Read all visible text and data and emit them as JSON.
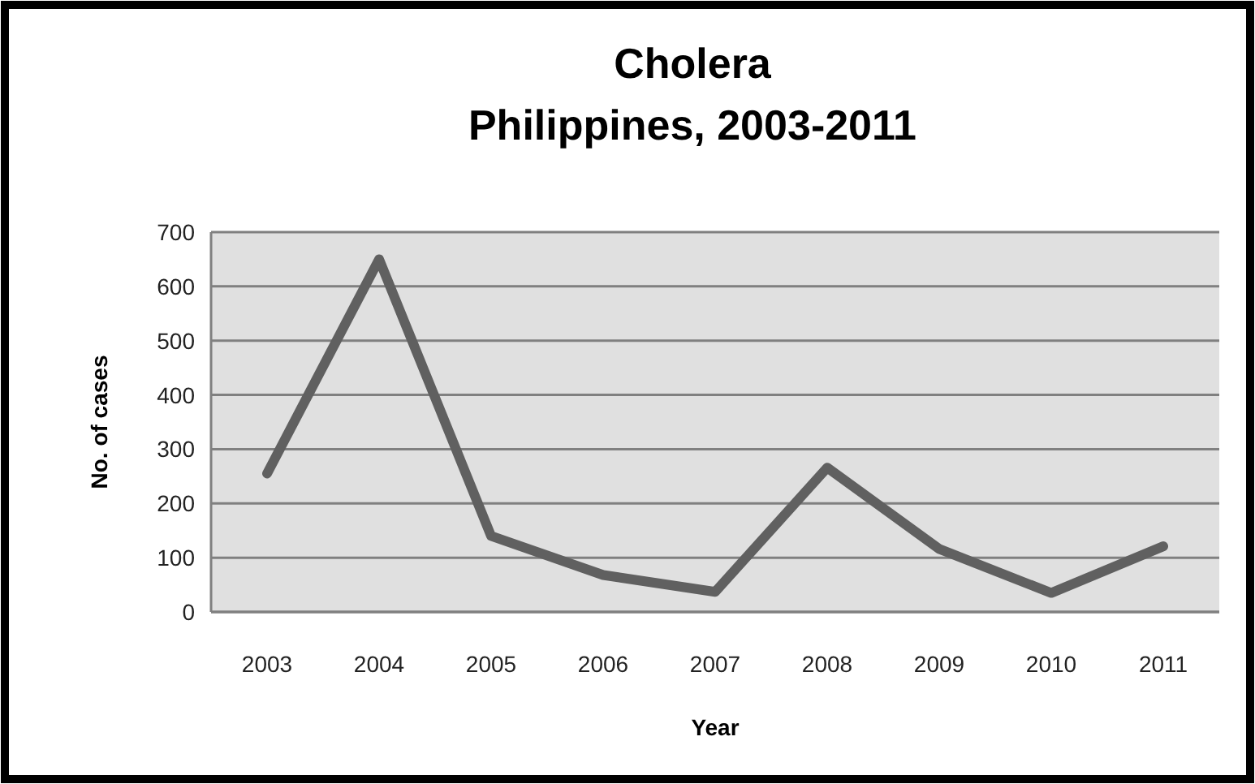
{
  "chart_data": {
    "type": "line",
    "title": "Cholera\nPhilippines, 2003-2011",
    "xlabel": "Year",
    "ylabel": "No. of cases",
    "categories": [
      "2003",
      "2004",
      "2005",
      "2006",
      "2007",
      "2008",
      "2009",
      "2010",
      "2011"
    ],
    "series": [
      {
        "color": "#606060",
        "values": [
          255,
          650,
          140,
          68,
          37,
          266,
          116,
          35,
          121
        ]
      }
    ],
    "ylim": [
      0,
      700
    ],
    "yticks": [
      0,
      100,
      200,
      300,
      400,
      500,
      600,
      700
    ],
    "grid": "y",
    "marker": "none",
    "line_style": "solid"
  }
}
